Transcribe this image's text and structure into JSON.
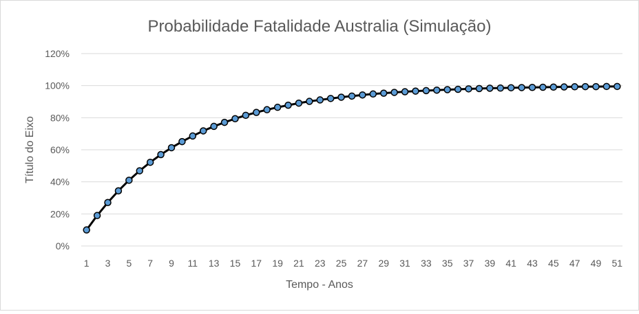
{
  "chart_data": {
    "type": "line",
    "title": "Probabilidade Fatalidade Australia (Simulação)",
    "xlabel": "Tempo - Anos",
    "ylabel": "Título do Eixo",
    "ylim": [
      0,
      120
    ],
    "y_ticks": [
      "0%",
      "20%",
      "40%",
      "60%",
      "80%",
      "100%",
      "120%"
    ],
    "y_unit": "%",
    "grid": true,
    "legend": "none",
    "categories": [
      1,
      2,
      3,
      4,
      5,
      6,
      7,
      8,
      9,
      10,
      11,
      12,
      13,
      14,
      15,
      16,
      17,
      18,
      19,
      20,
      21,
      22,
      23,
      24,
      25,
      26,
      27,
      28,
      29,
      30,
      31,
      32,
      33,
      34,
      35,
      36,
      37,
      38,
      39,
      40,
      41,
      42,
      43,
      44,
      45,
      46,
      47,
      48,
      49,
      50,
      51
    ],
    "x_tick_labels": [
      "1",
      "3",
      "5",
      "7",
      "9",
      "11",
      "13",
      "15",
      "17",
      "19",
      "21",
      "23",
      "25",
      "27",
      "29",
      "31",
      "33",
      "35",
      "37",
      "39",
      "41",
      "43",
      "45",
      "47",
      "49",
      "51"
    ],
    "series": [
      {
        "values": [
          10,
          19,
          27.1,
          34.4,
          41,
          46.9,
          52.2,
          57,
          61.3,
          65.1,
          68.6,
          71.8,
          74.6,
          77.1,
          79.4,
          81.5,
          83.3,
          85,
          86.5,
          87.8,
          89.1,
          90.2,
          91.1,
          92,
          92.8,
          93.5,
          94.2,
          94.8,
          95.3,
          95.8,
          96.2,
          96.6,
          96.9,
          97.2,
          97.5,
          97.7,
          98,
          98.2,
          98.4,
          98.5,
          98.7,
          98.8,
          98.9,
          99,
          99.1,
          99.2,
          99.3,
          99.4,
          99.4,
          99.5,
          99.5
        ],
        "color": "#5B9BD5",
        "line_color": "#000000"
      }
    ]
  }
}
